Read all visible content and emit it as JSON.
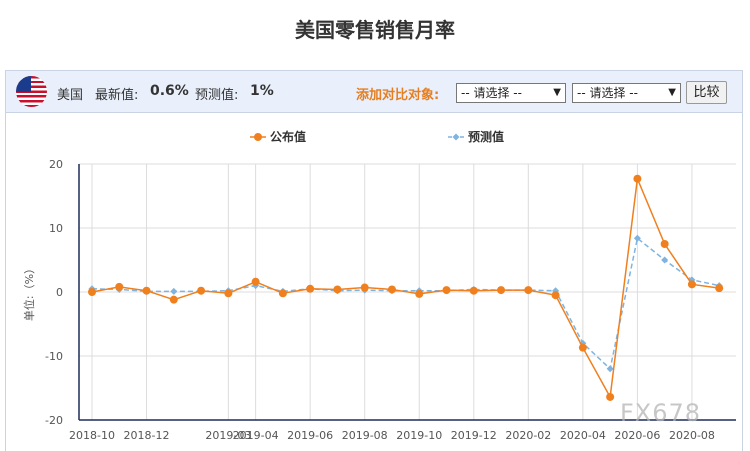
{
  "page": {
    "title": "美国零售销售月率"
  },
  "info_bar": {
    "country": "美国",
    "latest_label": "最新值:",
    "latest_value": "0.6%",
    "forecast_label": "预测值:",
    "forecast_value": "1%",
    "compare_label": "添加对比对象:",
    "select1_value": "-- 请选择 --",
    "select2_value": "-- 请选择 --",
    "compare_button": "比较",
    "flag_icon": "us-flag-icon"
  },
  "watermark": "FX678",
  "chart_data": {
    "type": "line",
    "x": [
      "2018-10",
      "2018-11",
      "2018-12",
      "2019-01",
      "2019-02",
      "2019-03",
      "2019-04",
      "2019-05",
      "2019-06",
      "2019-07",
      "2019-08",
      "2019-09",
      "2019-10",
      "2019-11",
      "2019-12",
      "2020-01",
      "2020-02",
      "2020-03",
      "2020-04",
      "2020-05",
      "2020-06",
      "2020-07",
      "2020-08",
      "2020-09"
    ],
    "x_tick_labels": [
      "2018-10",
      "2018-12",
      "2019-03",
      "2019-04",
      "2019-06",
      "2019-08",
      "2019-10",
      "2019-12",
      "2020-02",
      "2020-04",
      "2020-06",
      "2020-08"
    ],
    "series": [
      {
        "name": "公布值",
        "color": "#f07f1d",
        "values": [
          0.0,
          0.8,
          0.2,
          -1.2,
          0.2,
          -0.2,
          1.6,
          -0.2,
          0.5,
          0.4,
          0.7,
          0.4,
          -0.3,
          0.3,
          0.2,
          0.3,
          0.3,
          -0.5,
          -8.7,
          -16.4,
          17.7,
          7.5,
          1.2,
          0.6
        ]
      },
      {
        "name": "预测值",
        "color": "#7fb3e0",
        "dashed": true,
        "values": [
          0.5,
          0.4,
          0.1,
          0.1,
          0.1,
          0.2,
          1.0,
          0.1,
          0.5,
          0.2,
          0.3,
          0.2,
          0.2,
          0.2,
          0.4,
          0.3,
          0.3,
          0.2,
          -8.0,
          -12.0,
          8.4,
          5.0,
          1.9,
          1.0
        ]
      }
    ],
    "ylim": [
      -20,
      20
    ],
    "y_ticks": [
      -20,
      -10,
      0,
      10,
      20
    ],
    "ylabel": "单位:（%）",
    "legend_position": "top-center",
    "grid": true
  }
}
